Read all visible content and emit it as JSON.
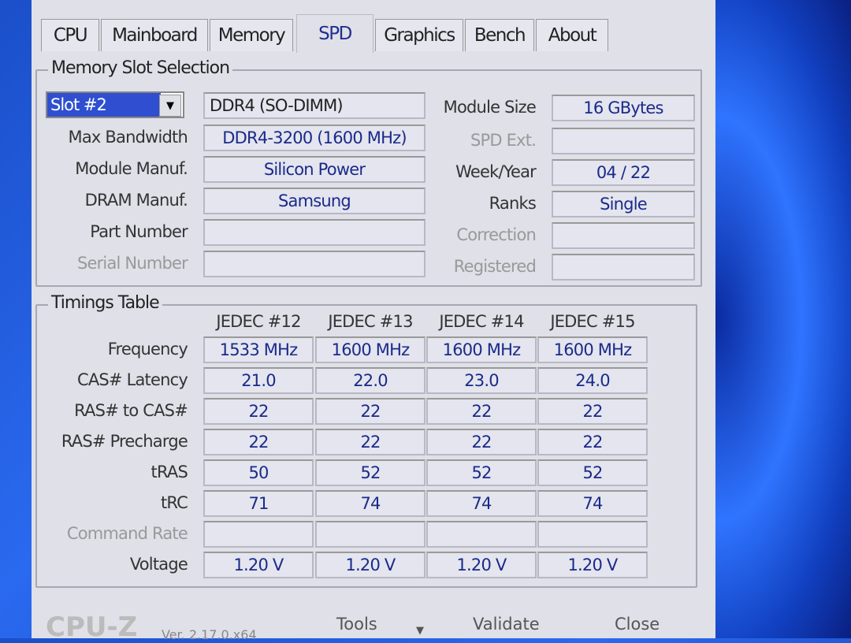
{
  "tabs": [
    "CPU",
    "Mainboard",
    "Memory",
    "SPD",
    "Graphics",
    "Bench",
    "About"
  ],
  "active_tab": "SPD",
  "slot_group": {
    "title": "Memory Slot Selection",
    "slot": "Slot #2",
    "module_type": "DDR4 (SO-DIMM)",
    "left": [
      {
        "label": "Max Bandwidth",
        "value": "DDR4-3200 (1600 MHz)",
        "disabled": false
      },
      {
        "label": "Module Manuf.",
        "value": "Silicon Power",
        "disabled": false
      },
      {
        "label": "DRAM Manuf.",
        "value": "Samsung",
        "disabled": false
      },
      {
        "label": "Part Number",
        "value": "",
        "disabled": false
      },
      {
        "label": "Serial Number",
        "value": "",
        "disabled": true
      }
    ],
    "right": [
      {
        "label": "Module Size",
        "value": "16 GBytes",
        "disabled": false
      },
      {
        "label": "SPD Ext.",
        "value": "",
        "disabled": true
      },
      {
        "label": "Week/Year",
        "value": "04 / 22",
        "disabled": false
      },
      {
        "label": "Ranks",
        "value": "Single",
        "disabled": false
      },
      {
        "label": "Correction",
        "value": "",
        "disabled": true
      },
      {
        "label": "Registered",
        "value": "",
        "disabled": true
      }
    ]
  },
  "timings": {
    "title": "Timings Table",
    "columns": [
      "JEDEC #12",
      "JEDEC #13",
      "JEDEC #14",
      "JEDEC #15"
    ],
    "rows": [
      {
        "label": "Frequency",
        "values": [
          "1533 MHz",
          "1600 MHz",
          "1600 MHz",
          "1600 MHz"
        ]
      },
      {
        "label": "CAS# Latency",
        "values": [
          "21.0",
          "22.0",
          "23.0",
          "24.0"
        ]
      },
      {
        "label": "RAS# to CAS#",
        "values": [
          "22",
          "22",
          "22",
          "22"
        ]
      },
      {
        "label": "RAS# Precharge",
        "values": [
          "22",
          "22",
          "22",
          "22"
        ]
      },
      {
        "label": "tRAS",
        "values": [
          "50",
          "52",
          "52",
          "52"
        ]
      },
      {
        "label": "tRC",
        "values": [
          "71",
          "74",
          "74",
          "74"
        ]
      },
      {
        "label": "Command Rate",
        "values": [
          "",
          "",
          "",
          ""
        ],
        "disabled": true
      },
      {
        "label": "Voltage",
        "values": [
          "1.20 V",
          "1.20 V",
          "1.20 V",
          "1.20 V"
        ]
      }
    ]
  },
  "footer": {
    "logo": "CPU-Z",
    "version": "Ver. 2.17.0.x64",
    "tools": "Tools",
    "validate": "Validate",
    "close": "Close"
  }
}
